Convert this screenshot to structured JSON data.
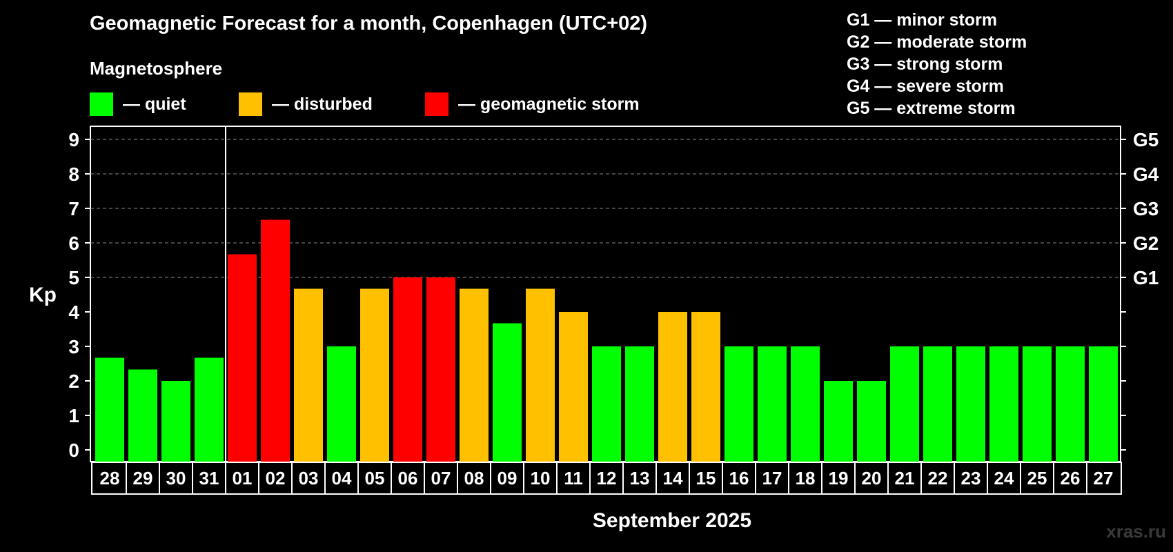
{
  "header": {
    "title": "Geomagnetic Forecast for a month, Copenhagen (UTC+02)",
    "subtitle": "Magnetosphere"
  },
  "legend": [
    {
      "label": "— quiet",
      "color": "#00ff00"
    },
    {
      "label": "— disturbed",
      "color": "#ffc000"
    },
    {
      "label": "— geomagnetic storm",
      "color": "#ff0000"
    }
  ],
  "storm_scale": [
    "G1 — minor storm",
    "G2 — moderate storm",
    "G3 — strong storm",
    "G4 — severe storm",
    "G5 — extreme storm"
  ],
  "watermark": "xras.ru",
  "chart_data": {
    "type": "bar",
    "ylabel": "Kp",
    "xlabel": "September 2025",
    "ylim": [
      0,
      9
    ],
    "yticks": [
      0,
      1,
      2,
      3,
      4,
      5,
      6,
      7,
      8,
      9
    ],
    "right_axis": {
      "5": "G1",
      "6": "G2",
      "7": "G3",
      "8": "G4",
      "9": "G5"
    },
    "grid": "horizontal dashed at Kp 5-9",
    "categories": [
      "28",
      "29",
      "30",
      "31",
      "01",
      "02",
      "03",
      "04",
      "05",
      "06",
      "07",
      "08",
      "09",
      "10",
      "11",
      "12",
      "13",
      "14",
      "15",
      "16",
      "17",
      "18",
      "19",
      "20",
      "21",
      "22",
      "23",
      "24",
      "25",
      "26",
      "27"
    ],
    "values": [
      2.67,
      2.33,
      2.0,
      2.67,
      5.67,
      6.67,
      4.67,
      3.0,
      4.67,
      5.0,
      5.0,
      4.67,
      3.67,
      4.67,
      4.0,
      3.0,
      3.0,
      4.0,
      4.0,
      3.0,
      3.0,
      3.0,
      2.0,
      2.0,
      3.0,
      3.0,
      3.0,
      3.0,
      3.0,
      3.0,
      3.0
    ],
    "levels": [
      "quiet",
      "quiet",
      "quiet",
      "quiet",
      "storm",
      "storm",
      "disturbed",
      "quiet",
      "disturbed",
      "storm",
      "storm",
      "disturbed",
      "quiet",
      "disturbed",
      "disturbed",
      "quiet",
      "quiet",
      "disturbed",
      "disturbed",
      "quiet",
      "quiet",
      "quiet",
      "quiet",
      "quiet",
      "quiet",
      "quiet",
      "quiet",
      "quiet",
      "quiet",
      "quiet",
      "quiet"
    ],
    "colors": {
      "quiet": "#00ff00",
      "disturbed": "#ffc000",
      "storm": "#ff0000"
    }
  }
}
